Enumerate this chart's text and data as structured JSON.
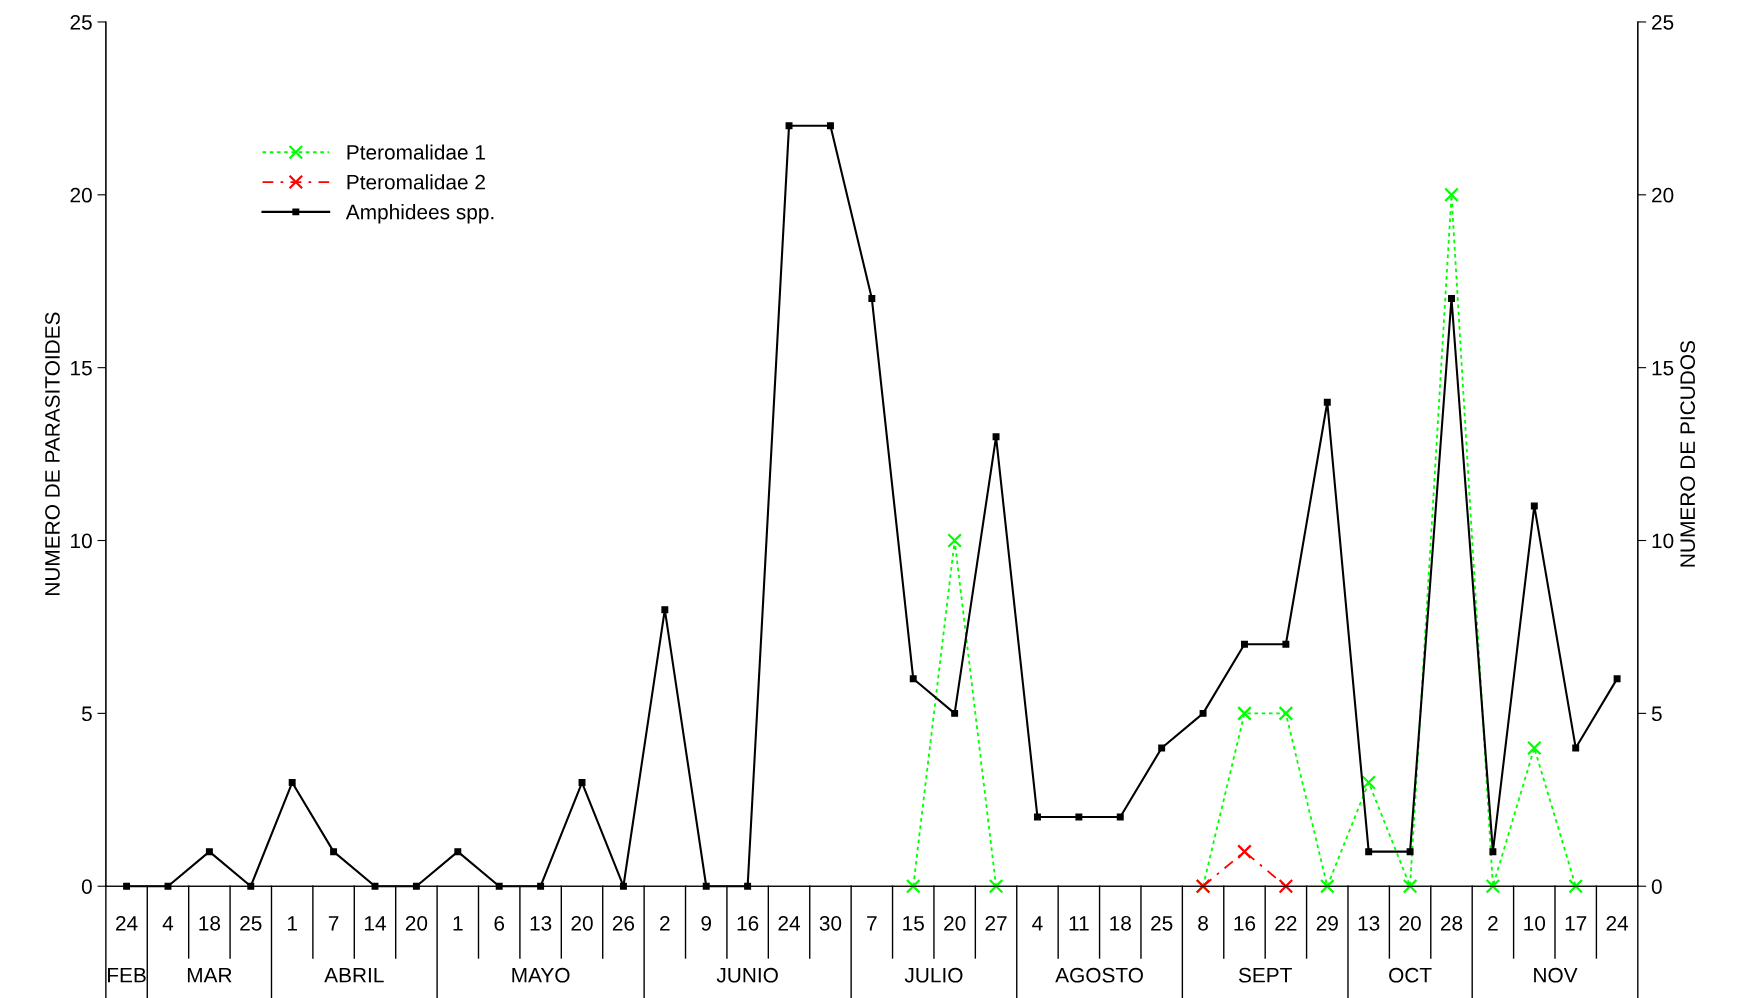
{
  "chart_data": {
    "type": "line",
    "ylabel": "NUMERO DE PARASITOIDES",
    "y2label": "NUMERO DE PICUDOS",
    "categories": [
      "24",
      "4",
      "18",
      "25",
      "1",
      "7",
      "14",
      "20",
      "1",
      "6",
      "13",
      "20",
      "26",
      "2",
      "9",
      "16",
      "24",
      "30",
      "7",
      "15",
      "20",
      "27",
      "4",
      "11",
      "18",
      "25",
      "8",
      "16",
      "22",
      "29",
      "13",
      "20",
      "28",
      "2",
      "10",
      "17",
      "24"
    ],
    "series": [
      {
        "name": "Pteromalidae 1",
        "color": "#00ff00",
        "marker": "cross",
        "line_style": "dotted",
        "values": [
          null,
          null,
          null,
          null,
          null,
          null,
          null,
          null,
          null,
          null,
          null,
          null,
          null,
          null,
          null,
          null,
          null,
          null,
          null,
          0,
          10,
          0,
          null,
          null,
          null,
          null,
          0,
          5,
          5,
          0,
          3,
          0,
          20,
          0,
          4,
          0,
          null
        ]
      },
      {
        "name": "Pteromalidae 2",
        "color": "#ff0000",
        "marker": "cross",
        "line_style": "dashed",
        "values": [
          null,
          null,
          null,
          null,
          null,
          null,
          null,
          null,
          null,
          null,
          null,
          null,
          null,
          null,
          null,
          null,
          null,
          null,
          null,
          null,
          null,
          null,
          null,
          null,
          null,
          null,
          0,
          1,
          0,
          null,
          null,
          null,
          null,
          null,
          null,
          null,
          null
        ]
      },
      {
        "name": "Amphidees spp.",
        "color": "#000000",
        "marker": "square",
        "line_style": "solid",
        "values": [
          0,
          0,
          1,
          0,
          3,
          1,
          0,
          0,
          1,
          0,
          0,
          3,
          0,
          8,
          0,
          0,
          22,
          22,
          17,
          6,
          5,
          13,
          2,
          2,
          2,
          4,
          5,
          7,
          7,
          14,
          1,
          1,
          17,
          1,
          11,
          4,
          6
        ]
      }
    ],
    "ylim": [
      0,
      25
    ],
    "yticks": [
      0,
      5,
      10,
      15,
      20,
      25
    ],
    "y2lim": [
      0,
      25
    ],
    "y2ticks": [
      0,
      5,
      10,
      15,
      20,
      25
    ],
    "annotations": [
      "FEB",
      "MAR",
      "ABRIL",
      "MAYO",
      "JUNIO",
      "JULIO",
      "AGOSTO",
      "SEPT",
      "OCT",
      "NOV"
    ],
    "legend": "top left",
    "grid": false
  }
}
